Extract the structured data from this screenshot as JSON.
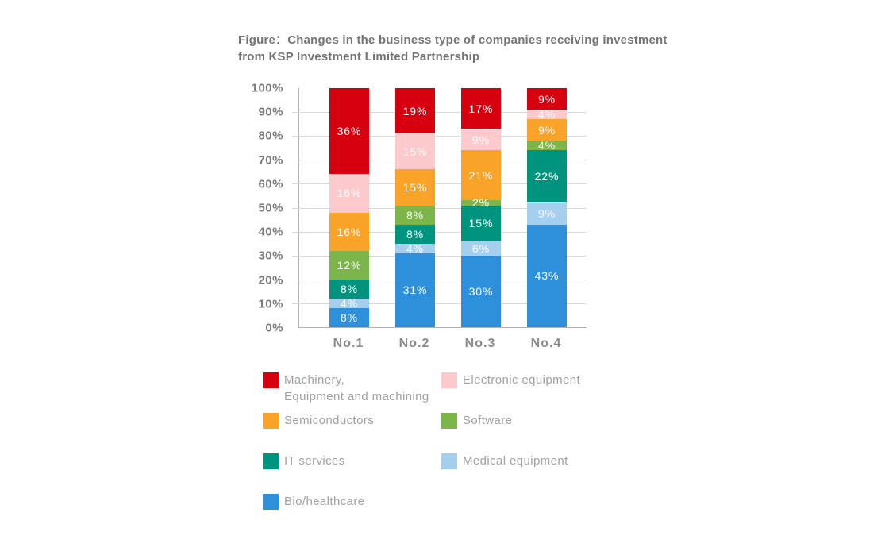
{
  "title": "Figure：Changes in the business type of companies receiving investment\nfrom KSP Investment Limited Partnership",
  "chart_data": {
    "type": "bar",
    "subtype": "stacked-percentage-column",
    "categories": [
      "No.1",
      "No.2",
      "No.3",
      "No.4"
    ],
    "stack_order": "bottom-to-top",
    "series": [
      {
        "name": "Bio/healthcare",
        "color": "#2e90db",
        "values": [
          8,
          31,
          30,
          43
        ]
      },
      {
        "name": "Medical equipment",
        "color": "#a5cfee",
        "values": [
          4,
          4,
          6,
          9
        ]
      },
      {
        "name": "IT services",
        "color": "#00947e",
        "values": [
          8,
          8,
          15,
          22
        ]
      },
      {
        "name": "Software",
        "color": "#7cb54a",
        "values": [
          12,
          8,
          2,
          4
        ]
      },
      {
        "name": "Semiconductors",
        "color": "#f9a329",
        "values": [
          16,
          15,
          21,
          9
        ]
      },
      {
        "name": "Electronic equipment",
        "color": "#fcc9cc",
        "values": [
          16,
          15,
          9,
          4
        ]
      },
      {
        "name": "Machinery,\nEquipment and machining",
        "color": "#d7000f",
        "values": [
          36,
          19,
          17,
          9
        ]
      }
    ],
    "value_suffix": "%",
    "value_label_color": "#ffffff",
    "y_ticks": [
      "100%",
      "90%",
      "80%",
      "70%",
      "60%",
      "50%",
      "40%",
      "30%",
      "20%",
      "10%",
      "0%"
    ],
    "ylim": [
      0,
      100
    ],
    "xlabel": "",
    "ylabel": "",
    "grid": "horizontal",
    "legend_position": "bottom",
    "legend_order": [
      "Machinery,\nEquipment and machining",
      "Electronic equipment",
      "Semiconductors",
      "Software",
      "IT services",
      "Medical equipment",
      "Bio/healthcare"
    ]
  }
}
